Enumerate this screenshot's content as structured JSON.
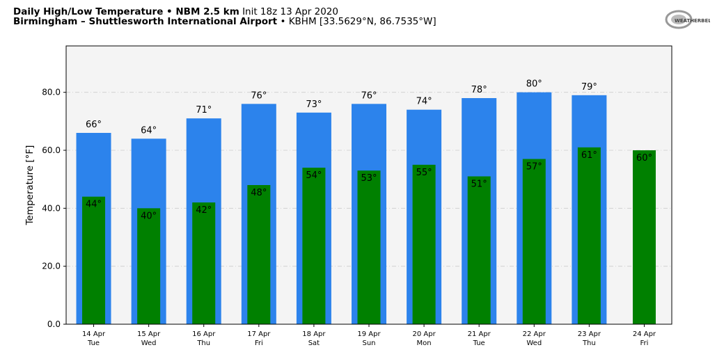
{
  "header": {
    "title_bold": "Daily High/Low Temperature • NBM 2.5 km",
    "title_init": "Init 18z 13 Apr 2020",
    "station_bold": "Birmingham – Shuttlesworth International Airport",
    "station_info": "• KBHM [33.5629°N, 86.7535°W]",
    "logo_text": "WeatherBELL"
  },
  "colors": {
    "high": "#2c83ec",
    "low": "#008000",
    "plot_bg": "#f4f4f4"
  },
  "chart_data": {
    "type": "bar",
    "title": "Daily High/Low Temperature • NBM 2.5 km",
    "xlabel": "",
    "ylabel": "Temperature [°F]",
    "ylim": [
      0,
      96
    ],
    "yticks": [
      0,
      20,
      40,
      60,
      80
    ],
    "ytick_labels": [
      "0.0",
      "20.0",
      "40.0",
      "60.0",
      "80.0"
    ],
    "grid": true,
    "categories": [
      [
        "14 Apr",
        "Tue"
      ],
      [
        "15 Apr",
        "Wed"
      ],
      [
        "16 Apr",
        "Thu"
      ],
      [
        "17 Apr",
        "Fri"
      ],
      [
        "18 Apr",
        "Sat"
      ],
      [
        "19 Apr",
        "Sun"
      ],
      [
        "20 Apr",
        "Mon"
      ],
      [
        "21 Apr",
        "Tue"
      ],
      [
        "22 Apr",
        "Wed"
      ],
      [
        "23 Apr",
        "Thu"
      ],
      [
        "24 Apr",
        "Fri"
      ]
    ],
    "series": [
      {
        "name": "High",
        "values": [
          66,
          64,
          71,
          76,
          73,
          76,
          74,
          78,
          80,
          79,
          null
        ],
        "labels": [
          "66°",
          "64°",
          "71°",
          "76°",
          "73°",
          "76°",
          "74°",
          "78°",
          "80°",
          "79°",
          null
        ]
      },
      {
        "name": "Low",
        "values": [
          44,
          40,
          42,
          48,
          54,
          53,
          55,
          51,
          57,
          61,
          60
        ],
        "labels": [
          "44°",
          "40°",
          "42°",
          "48°",
          "54°",
          "53°",
          "55°",
          "51°",
          "57°",
          "61°",
          "60°"
        ]
      }
    ]
  }
}
